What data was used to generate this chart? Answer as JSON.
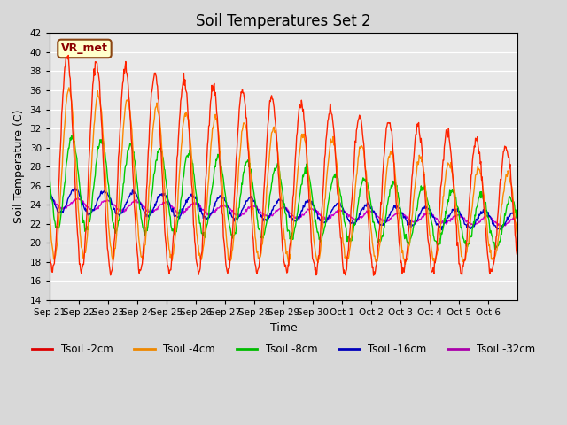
{
  "title": "Soil Temperatures Set 2",
  "xlabel": "Time",
  "ylabel": "Soil Temperature (C)",
  "ylim": [
    14,
    42
  ],
  "yticks": [
    14,
    16,
    18,
    20,
    22,
    24,
    26,
    28,
    30,
    32,
    34,
    36,
    38,
    40,
    42
  ],
  "xtick_labels": [
    "Sep 21",
    "Sep 22",
    "Sep 23",
    "Sep 24",
    "Sep 25",
    "Sep 26",
    "Sep 27",
    "Sep 28",
    "Sep 29",
    "Sep 30",
    "Oct 1",
    "Oct 2",
    "Oct 3",
    "Oct 4",
    "Oct 5",
    "Oct 6"
  ],
  "annotation_text": "VR_met",
  "series_colors": [
    "#ff2200",
    "#ff8800",
    "#00cc00",
    "#0000cc",
    "#cc00cc"
  ],
  "series_labels": [
    "Tsoil -2cm",
    "Tsoil -4cm",
    "Tsoil -8cm",
    "Tsoil -16cm",
    "Tsoil -32cm"
  ],
  "legend_colors": [
    "#dd0000",
    "#ee8800",
    "#00bb00",
    "#0000bb",
    "#aa00aa"
  ],
  "fig_bg": "#d8d8d8",
  "ax_bg": "#e8e8e8"
}
